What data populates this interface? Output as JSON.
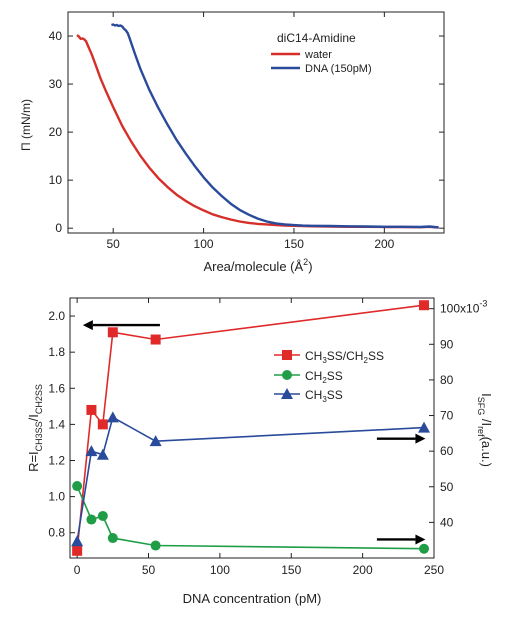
{
  "chart_data": [
    {
      "type": "line",
      "legend_title": "diC14-Amidine",
      "xlabel": "Area/molecule (Å",
      "xlabel_sup": "2",
      "xlabel_close": ")",
      "ylabel": "Π (mN/m)",
      "xlim": [
        25,
        233
      ],
      "ylim": [
        -1,
        45
      ],
      "xticks": [
        50,
        100,
        150,
        200
      ],
      "yticks": [
        0,
        10,
        20,
        30,
        40
      ],
      "grid": false,
      "legend_position": "top-right",
      "series": [
        {
          "name": "water",
          "color": "#d62f2a",
          "x": [
            30,
            31,
            32,
            33,
            34,
            35,
            36,
            38,
            40,
            43,
            46,
            50,
            55,
            60,
            65,
            70,
            75,
            80,
            85,
            90,
            95,
            100,
            105,
            110,
            115,
            120,
            125,
            130,
            135,
            140,
            145,
            150,
            155,
            160,
            170,
            180,
            190,
            200,
            210,
            220,
            225,
            230
          ],
          "y": [
            40.2,
            39.9,
            39.4,
            39.5,
            39.3,
            38.9,
            38.0,
            36.3,
            34.3,
            31.2,
            28.5,
            25.2,
            21.3,
            18.0,
            15.1,
            12.6,
            10.4,
            8.6,
            7.0,
            5.7,
            4.6,
            3.7,
            2.9,
            2.3,
            1.8,
            1.4,
            1.1,
            0.9,
            0.8,
            0.65,
            0.55,
            0.5,
            0.45,
            0.4,
            0.35,
            0.3,
            0.3,
            0.25,
            0.25,
            0.2,
            0.3,
            0.15
          ]
        },
        {
          "name": "DNA (150pM)",
          "color": "#2a4b9b",
          "x": [
            49,
            50,
            51,
            52,
            53,
            54,
            55,
            56,
            57,
            58,
            59,
            60,
            62,
            65,
            70,
            75,
            80,
            85,
            90,
            95,
            100,
            105,
            110,
            115,
            120,
            125,
            130,
            135,
            140,
            145,
            150,
            155,
            160,
            170,
            180,
            190,
            200,
            210,
            220,
            225,
            230
          ],
          "y": [
            42.3,
            42.4,
            42.2,
            42.3,
            42.1,
            42.2,
            42.0,
            41.5,
            41.2,
            40.6,
            39.6,
            38.5,
            36.3,
            33.2,
            28.8,
            25.0,
            21.6,
            18.4,
            15.6,
            13.0,
            10.6,
            8.5,
            6.7,
            5.1,
            3.8,
            2.8,
            2.0,
            1.4,
            1.0,
            0.8,
            0.65,
            0.55,
            0.5,
            0.45,
            0.4,
            0.35,
            0.3,
            0.3,
            0.25,
            0.35,
            0.15
          ]
        }
      ]
    },
    {
      "type": "line",
      "xlabel": "DNA concentration (pM)",
      "ylabel_left_main": "R=I",
      "ylabel_left_sub1": "CH3SS",
      "ylabel_left_mid": "/I",
      "ylabel_left_sub2": "CH2SS",
      "ylabel_right_main1": "I",
      "ylabel_right_sub1": "SFG",
      "ylabel_right_main2": " /I",
      "ylabel_right_sub2": "ref",
      "ylabel_right_tail": "(a.u.)",
      "xlim": [
        -5,
        250
      ],
      "ylim_left": [
        0.66,
        2.1
      ],
      "ylim_right": [
        30,
        103.0
      ],
      "xticks": [
        0,
        50,
        100,
        150,
        200,
        250
      ],
      "yticks_left": [
        0.8,
        1.0,
        1.2,
        1.4,
        1.6,
        1.8,
        2.0
      ],
      "yticks_left_labels": [
        "0.8",
        "1.0",
        "1.2",
        "1.4",
        "1.6",
        "1.8",
        "2.0"
      ],
      "yticks_right": [
        40,
        50,
        60,
        70,
        80,
        90,
        100
      ],
      "yticks_right_labels": [
        "40",
        "50",
        "60",
        "70",
        "80",
        "90",
        "100x10"
      ],
      "right_exponent": "-3",
      "grid": false,
      "legend_position": "right-center",
      "series": [
        {
          "name_parts": [
            "CH",
            "3",
            "SS/CH",
            "2",
            "SS"
          ],
          "color": "#e02a2a",
          "marker": "square",
          "axis": "left",
          "x": [
            0,
            10,
            18,
            25,
            55,
            243
          ],
          "y": [
            0.7,
            1.48,
            1.4,
            1.91,
            1.87,
            2.06
          ]
        },
        {
          "name_parts": [
            "CH",
            "2",
            "SS"
          ],
          "color": "#1f9e47",
          "marker": "circle",
          "axis": "right",
          "x": [
            0,
            10,
            18,
            25,
            55,
            243
          ],
          "y": [
            50.2,
            40.8,
            41.8,
            35.6,
            33.5,
            32.6
          ]
        },
        {
          "name_parts": [
            "CH",
            "3",
            "SS"
          ],
          "color": "#2a4b9b",
          "marker": "triangle",
          "axis": "right",
          "x": [
            0,
            10,
            18,
            25,
            55,
            243
          ],
          "y": [
            34.7,
            60.0,
            59.0,
            69.5,
            62.8,
            66.6
          ]
        }
      ],
      "arrows": [
        {
          "direction": "left",
          "axis": "left",
          "x_from": 58,
          "x_to": 4,
          "y": 1.95
        },
        {
          "direction": "right",
          "axis": "right",
          "x_from": 210,
          "x_to": 244,
          "y": 63.5
        },
        {
          "direction": "right",
          "axis": "right",
          "x_from": 210,
          "x_to": 244,
          "y": 35.2
        }
      ]
    }
  ]
}
